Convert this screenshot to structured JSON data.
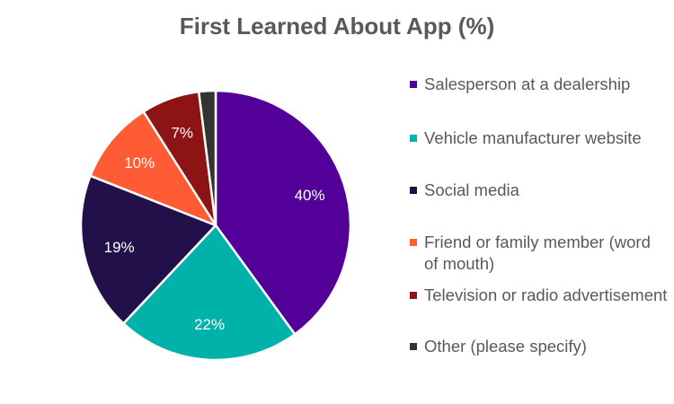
{
  "chart_data": {
    "type": "pie",
    "title": "First Learned About App (%)",
    "slices": [
      {
        "label": "Salesperson at a dealership",
        "value": 40,
        "data_label": "40%",
        "color": "#520097"
      },
      {
        "label": "Vehicle manufacturer website",
        "value": 22,
        "data_label": "22%",
        "color": "#00B2A9"
      },
      {
        "label": "Social media",
        "value": 19,
        "data_label": "19%",
        "color": "#211049"
      },
      {
        "label": "Friend or family member (word of mouth)",
        "value": 10,
        "data_label": "10%",
        "color": "#FF5B35"
      },
      {
        "label": "Television or radio advertisement",
        "value": 7,
        "data_label": "7%",
        "color": "#8C1414"
      },
      {
        "label": "Other (please specify)",
        "value": 2,
        "data_label": "",
        "color": "#333333"
      }
    ],
    "legend_position": "right",
    "label_color": "#ffffff"
  }
}
